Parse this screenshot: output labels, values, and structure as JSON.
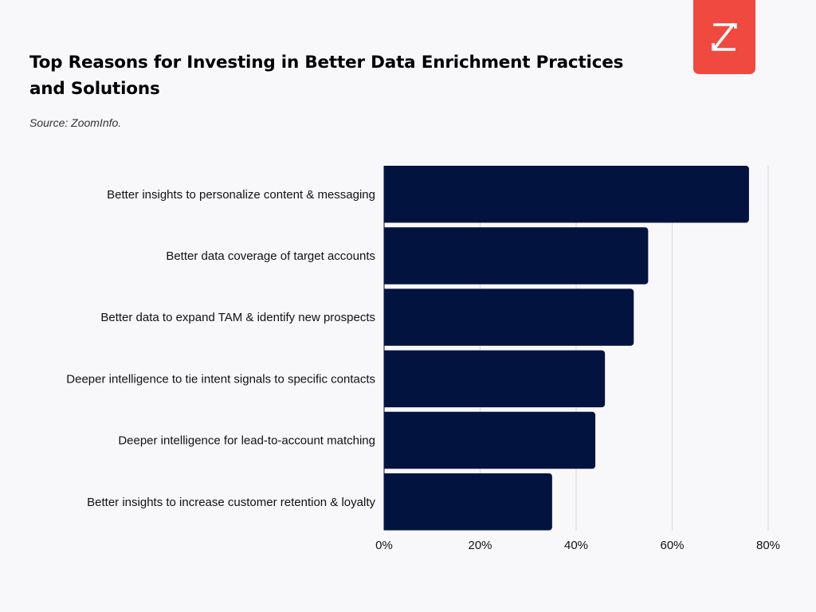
{
  "title": "Top Reasons for Investing in Better Data Enrichment Practices and Solutions",
  "subtitle": "Source: ZoomInfo.",
  "logo": {
    "icon": "zoominfo-z-logo",
    "color": "#f04a40"
  },
  "colors": {
    "bar": "#031340",
    "grid": "#d9d9de",
    "background": "#f8f8fb"
  },
  "chart_data": {
    "type": "bar",
    "orientation": "horizontal",
    "categories": [
      "Better insights to personalize content & messaging",
      "Better data coverage of target accounts",
      "Better data to expand TAM & identify new prospects",
      "Deeper intelligence to tie intent signals to specific contacts",
      "Deeper intelligence for lead-to-account matching",
      "Better insights to increase customer retention & loyalty"
    ],
    "values": [
      76,
      55,
      52,
      46,
      44,
      35
    ],
    "unit": "%",
    "xlim": [
      0,
      80
    ],
    "xticks": [
      0,
      20,
      40,
      60,
      80
    ],
    "xtick_labels": [
      "0%",
      "20%",
      "40%",
      "60%",
      "80%"
    ],
    "grid": true,
    "legend": "none",
    "xlabel": "",
    "ylabel": ""
  }
}
